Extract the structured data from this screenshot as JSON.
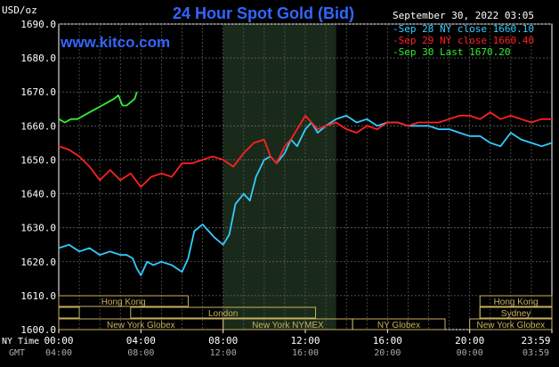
{
  "chart_data": {
    "type": "line",
    "title": "24 Hour Spot Gold (Bid)",
    "watermark": "www.kitco.com",
    "ylabel": "USD/oz",
    "ylim": [
      1600,
      1690
    ],
    "yticks": [
      "1600.0",
      "1610.0",
      "1620.0",
      "1630.0",
      "1640.0",
      "1650.0",
      "1660.0",
      "1670.0",
      "1680.0",
      "1690.0"
    ],
    "xlim": [
      0,
      24
    ],
    "xticks_ny": [
      "00:00",
      "04:00",
      "08:00",
      "12:00",
      "16:00",
      "20:00",
      "23:59"
    ],
    "xticks_gmt": [
      "04:00",
      "08:00",
      "12:00",
      "16:00",
      "20:00",
      "00:00",
      "03:59"
    ],
    "xaxis_row_labels": [
      "NY Time",
      "GMT"
    ],
    "timestamp": "September 30, 2022 03:05",
    "grid": true,
    "legend_position": "top-right",
    "shaded_hours": [
      8,
      13.5
    ],
    "series": [
      {
        "name": "Sep 28 NY close 1660.10",
        "color": "#33ccff",
        "x": [
          0,
          0.5,
          1,
          1.5,
          2,
          2.5,
          3,
          3.3,
          3.6,
          3.8,
          4,
          4.3,
          4.6,
          5,
          5.5,
          6,
          6.3,
          6.6,
          7,
          7.3,
          7.6,
          8,
          8.3,
          8.6,
          9,
          9.3,
          9.6,
          10,
          10.3,
          10.6,
          11,
          11.3,
          11.6,
          12,
          12.3,
          12.6,
          13,
          13.5,
          14,
          14.5,
          15,
          15.5,
          16,
          16.5,
          17,
          17.5,
          18,
          18.5,
          19,
          19.5,
          20,
          20.5,
          21,
          21.5,
          22,
          22.5,
          23,
          23.5,
          24
        ],
        "values": [
          1624,
          1625,
          1623,
          1624,
          1622,
          1623,
          1622,
          1622,
          1621,
          1618,
          1616,
          1620,
          1619,
          1620,
          1619,
          1617,
          1621,
          1629,
          1631,
          1629,
          1627,
          1625,
          1628,
          1637,
          1640,
          1638,
          1645,
          1650,
          1651,
          1649,
          1652,
          1656,
          1654,
          1659,
          1661,
          1658,
          1660,
          1662,
          1663,
          1661,
          1662,
          1660,
          1661,
          1661,
          1660,
          1660,
          1660,
          1659,
          1659,
          1658,
          1657,
          1657,
          1655,
          1654,
          1658,
          1656,
          1655,
          1654,
          1655
        ]
      },
      {
        "name": "Sep 29 NY close 1660.40",
        "color": "#ff2020",
        "x": [
          0,
          0.5,
          1,
          1.5,
          2,
          2.5,
          3,
          3.5,
          4,
          4.5,
          5,
          5.5,
          6,
          6.5,
          7,
          7.5,
          8,
          8.5,
          9,
          9.5,
          10,
          10.3,
          10.6,
          11,
          11.3,
          11.6,
          12,
          12.3,
          12.6,
          13,
          13.5,
          14,
          14.5,
          15,
          15.5,
          16,
          16.5,
          17,
          17.5,
          18,
          18.5,
          19,
          19.5,
          20,
          20.5,
          21,
          21.5,
          22,
          22.5,
          23,
          23.5,
          24
        ],
        "values": [
          1654,
          1653,
          1651,
          1648,
          1644,
          1647,
          1644,
          1646,
          1642,
          1645,
          1646,
          1645,
          1649,
          1649,
          1650,
          1651,
          1650,
          1648,
          1652,
          1655,
          1656,
          1651,
          1649,
          1654,
          1656,
          1659,
          1663,
          1661,
          1659,
          1660,
          1661,
          1659,
          1658,
          1660,
          1659,
          1661,
          1661,
          1660,
          1661,
          1661,
          1661,
          1662,
          1663,
          1663,
          1662,
          1664,
          1662,
          1663,
          1662,
          1661,
          1662,
          1662
        ]
      },
      {
        "name": "Sep 30 Last 1670.20",
        "color": "#33ee33",
        "x": [
          0,
          0.3,
          0.6,
          0.9,
          1.2,
          1.5,
          1.8,
          2.1,
          2.4,
          2.7,
          2.9,
          3.1,
          3.3,
          3.5,
          3.7,
          3.8
        ],
        "values": [
          1662,
          1661,
          1662,
          1662,
          1663,
          1664,
          1665,
          1666,
          1667,
          1668,
          1669,
          1666,
          1666,
          1667,
          1668,
          1670
        ]
      }
    ],
    "sessions": [
      {
        "label": "Hong Kong",
        "start": 0,
        "end": 6.3,
        "row": 0
      },
      {
        "label": "",
        "start": 0,
        "end": 1,
        "row": 1
      },
      {
        "label": "London",
        "start": 3.5,
        "end": 12.5,
        "row": 1
      },
      {
        "label": "New York Globex",
        "start": 0,
        "end": 8,
        "row": 2
      },
      {
        "label": "New York NYMEX",
        "start": 8,
        "end": 14.3,
        "row": 2
      },
      {
        "label": "NY Globex",
        "start": 14.3,
        "end": 18.8,
        "row": 2
      },
      {
        "label": "Hong Kong",
        "start": 20.5,
        "end": 24,
        "row": 0
      },
      {
        "label": "",
        "start": 20.5,
        "end": 24,
        "row": 1
      },
      {
        "label": "Sydney",
        "start": 20.5,
        "end": 24,
        "row": 1
      },
      {
        "label": "New York Globex",
        "start": 20,
        "end": 24,
        "row": 2
      }
    ]
  }
}
